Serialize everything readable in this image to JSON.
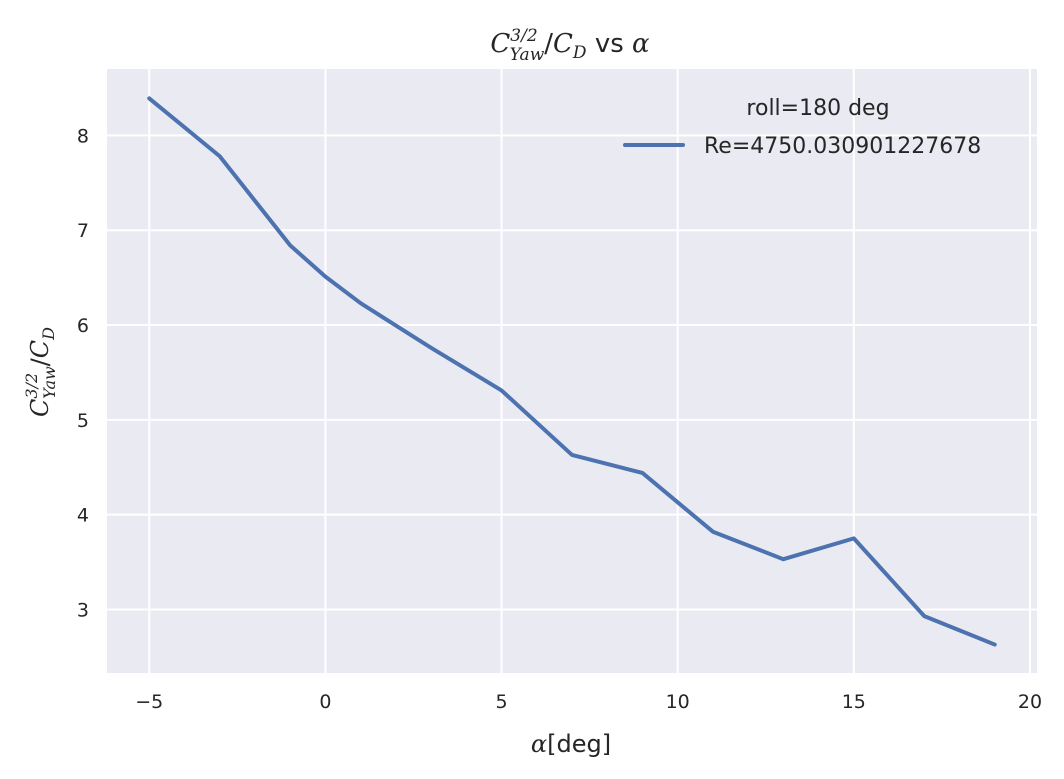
{
  "chart_data": {
    "type": "line",
    "title": {
      "c": "C",
      "sup": "3/2",
      "sub": "Yaw",
      "slash": "/",
      "c2": "C",
      "sub2": "D",
      "vs": " vs ",
      "alpha": "α"
    },
    "xlabel": {
      "alpha": "α",
      "unit": "[deg]"
    },
    "ylabel": {
      "c": "C",
      "sup": "3/2",
      "sub": "Yaw",
      "slash": "/",
      "c2": "C",
      "sub2": "D"
    },
    "xlim": [
      -6.2,
      20.2
    ],
    "ylim": [
      2.33,
      8.7
    ],
    "xticks": [
      -5,
      0,
      5,
      10,
      15,
      20
    ],
    "yticks": [
      3,
      4,
      5,
      6,
      7,
      8
    ],
    "xtick_labels": [
      "−5",
      "0",
      "5",
      "10",
      "15",
      "20"
    ],
    "ytick_labels": [
      "3",
      "4",
      "5",
      "6",
      "7",
      "8"
    ],
    "grid": true,
    "legend_title": "roll=180 deg",
    "legend_placement": "top-right",
    "series": [
      {
        "name": "Re=4750.030901227678",
        "color": "#4c72b0",
        "x": [
          -5,
          -3,
          -1,
          0,
          1,
          3,
          5,
          7,
          9,
          11,
          13,
          15,
          17,
          19
        ],
        "y": [
          8.39,
          7.78,
          6.84,
          6.51,
          6.23,
          5.76,
          5.31,
          4.63,
          4.44,
          3.82,
          3.53,
          3.75,
          2.93,
          2.63
        ]
      }
    ],
    "background": "#eaeaf2",
    "grid_color": "#ffffff"
  }
}
